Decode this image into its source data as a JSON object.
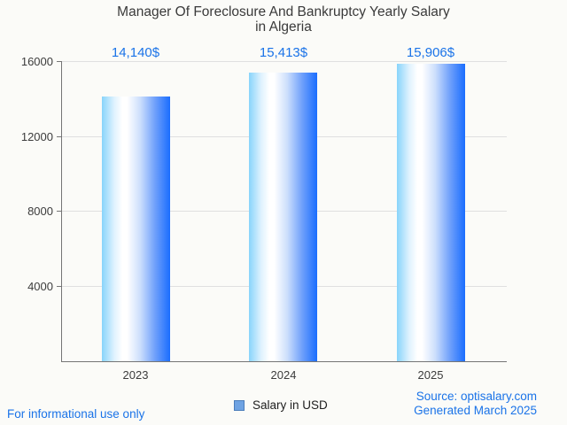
{
  "header": {
    "title_line1": "Manager Of Foreclosure And Bankruptcy Yearly Salary",
    "title_line2": "in Algeria"
  },
  "chart_data": {
    "type": "bar",
    "title": "Manager Of Foreclosure And Bankruptcy Yearly Salary in Algeria",
    "categories": [
      "2023",
      "2024",
      "2025"
    ],
    "values": [
      14140,
      15413,
      15906
    ],
    "value_labels": [
      "14,140$",
      "15,413$",
      "15,906$"
    ],
    "series": [
      {
        "name": "Salary in USD",
        "values": [
          14140,
          15413,
          15906
        ]
      }
    ],
    "xlabel": "",
    "ylabel": "",
    "ylim": [
      0,
      16000
    ],
    "yticks": [
      4000,
      8000,
      12000,
      16000
    ],
    "ytick_labels_top_to_bottom": [
      "16000",
      "12000",
      "8000",
      "4000"
    ],
    "grid": true,
    "legend_position": "bottom-center",
    "colors": {
      "value_label_text": "#1a73e8",
      "bar_gradient_left": "#88d4fb",
      "bar_gradient_middle": "#ffffff",
      "bar_gradient_right": "#1a6dfe",
      "legend_marker_fill": "#6fa3e3",
      "legend_marker_border": "#4b7dbb",
      "gridline": "#e0e0e0",
      "axis_line": "#757575",
      "background": "#fbfbf8",
      "title_text": "#3a3a3a"
    }
  },
  "legend": {
    "label": "Salary in USD"
  },
  "footer": {
    "disclaimer": "For informational use only",
    "source_line1": "Source: optisalary.com",
    "source_line2": "Generated March 2025"
  }
}
